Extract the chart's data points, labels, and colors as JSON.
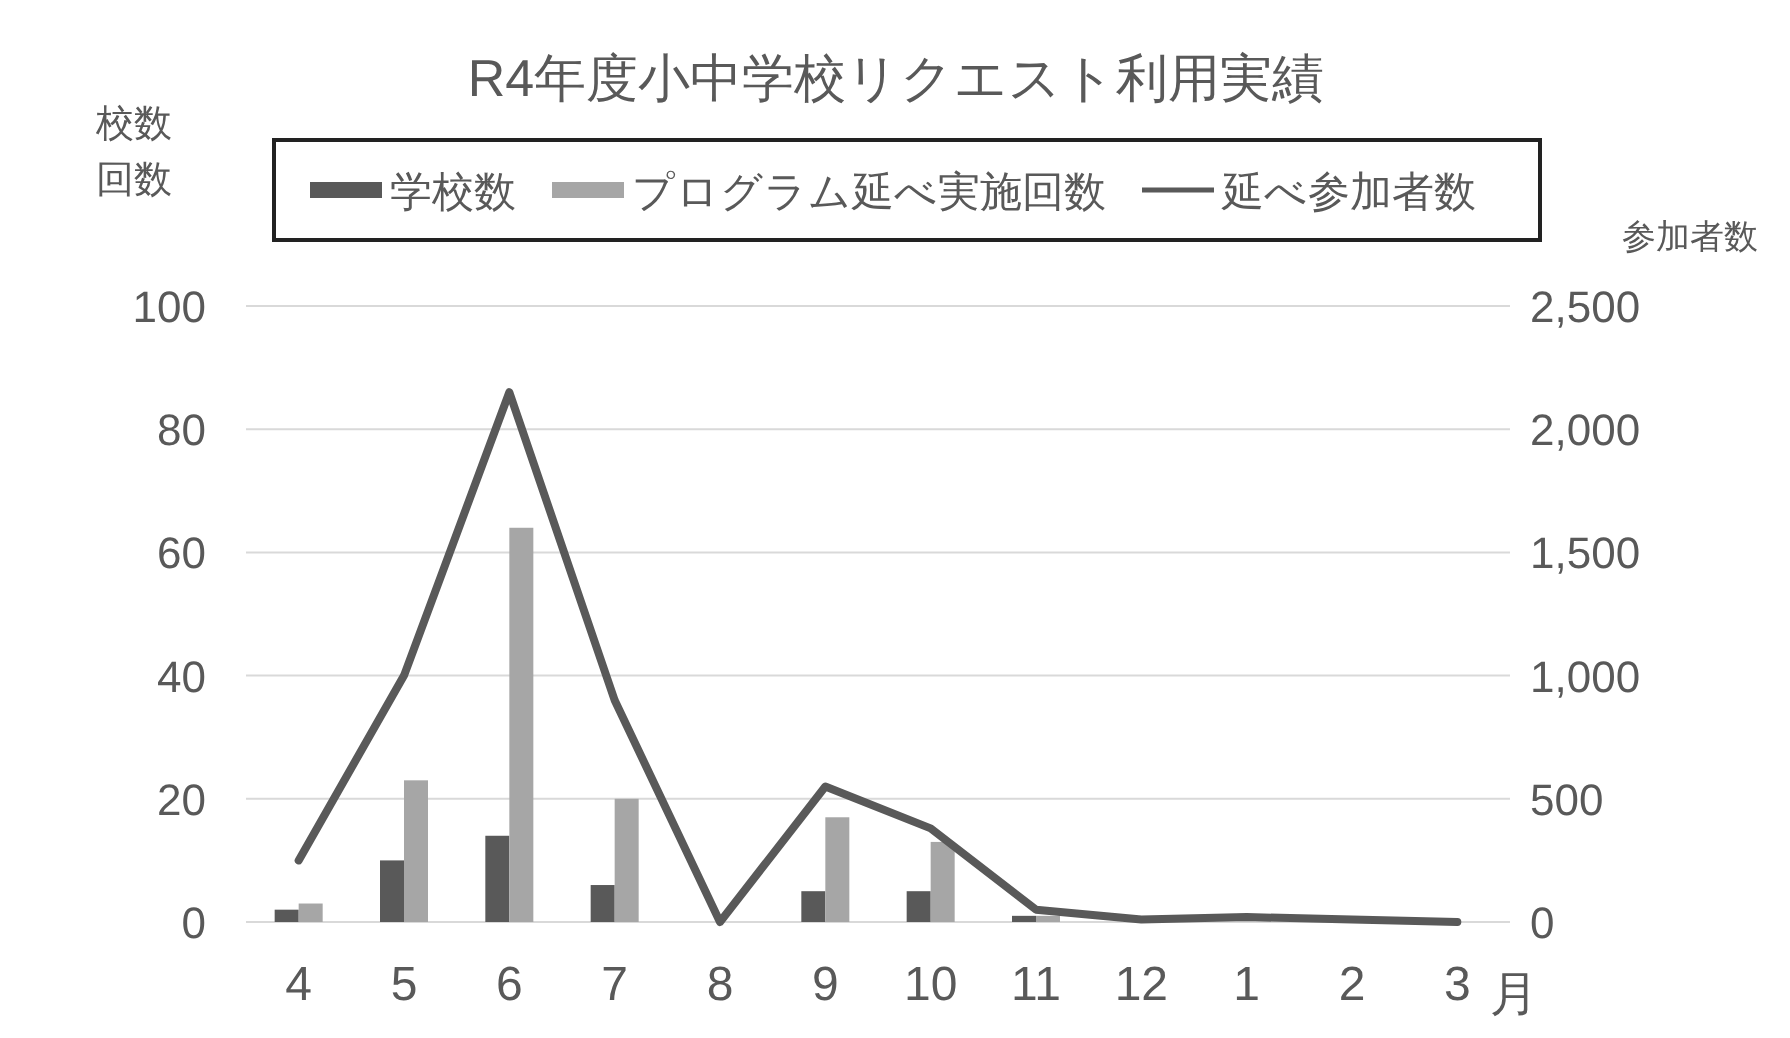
{
  "chart_data": {
    "type": "bar",
    "title": "R4年度小中学校リクエスト利用実績",
    "ylabel": "校数回数",
    "y2label": "参加者数",
    "xlabel": "月",
    "categories": [
      "4",
      "5",
      "6",
      "7",
      "8",
      "9",
      "10",
      "11",
      "12",
      "1",
      "2",
      "3"
    ],
    "series": [
      {
        "name": "学校数",
        "color": "#595959",
        "values": [
          2,
          10,
          14,
          6,
          0,
          5,
          5,
          1,
          0,
          0,
          0,
          0
        ]
      },
      {
        "name": "プログラム延べ実施回数",
        "color": "#a6a6a6",
        "values": [
          3,
          23,
          64,
          20,
          0,
          17,
          13,
          1,
          0,
          0,
          0,
          0
        ]
      },
      {
        "name": "延べ参加者数",
        "type": "line",
        "axis": "y2",
        "color": "#595959",
        "values": [
          250,
          1000,
          2150,
          900,
          0,
          550,
          380,
          50,
          10,
          20,
          10,
          0
        ]
      }
    ],
    "ylim": [
      0,
      100
    ],
    "yticks": [
      0,
      20,
      40,
      60,
      80,
      100
    ],
    "y2lim": [
      0,
      2500
    ],
    "y2ticks": [
      0,
      {
        "value": 500,
        "label": "500"
      },
      {
        "value": 1000,
        "label": "1,000"
      },
      {
        "value": 1500,
        "label": "1,500"
      },
      {
        "value": 2000,
        "label": "2,000"
      },
      {
        "value": 2500,
        "label": "2,500"
      }
    ],
    "grid": "y",
    "legend": "top",
    "marker": "none"
  }
}
